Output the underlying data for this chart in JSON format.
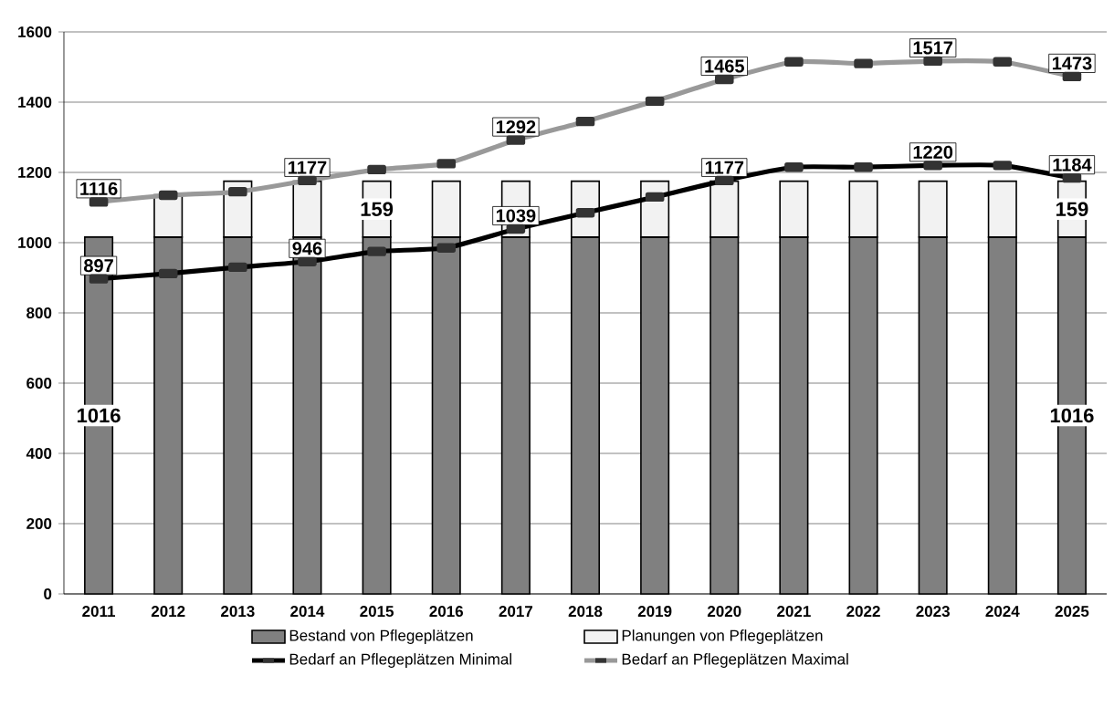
{
  "chart_data": {
    "type": "bar",
    "stacked": true,
    "categories": [
      "2011",
      "2012",
      "2013",
      "2014",
      "2015",
      "2016",
      "2017",
      "2018",
      "2019",
      "2020",
      "2021",
      "2022",
      "2023",
      "2024",
      "2025"
    ],
    "ylim": [
      0,
      1600
    ],
    "yticks": [
      0,
      200,
      400,
      600,
      800,
      1000,
      1200,
      1400,
      1600
    ],
    "grid": "y",
    "legend": "bottom",
    "series": [
      {
        "name": "Bestand von Pflegeplätzen",
        "color": "#808080",
        "values": [
          1016,
          1016,
          1016,
          1016,
          1016,
          1016,
          1016,
          1016,
          1016,
          1016,
          1016,
          1016,
          1016,
          1016,
          1016
        ],
        "value_labels": [
          "1016",
          null,
          null,
          null,
          null,
          null,
          null,
          null,
          null,
          null,
          null,
          null,
          null,
          null,
          "1016"
        ]
      },
      {
        "name": "Planungen von Pflegeplätzen",
        "color": "#f2f2f2",
        "values": [
          null,
          120,
          159,
          159,
          159,
          159,
          159,
          159,
          159,
          159,
          159,
          159,
          159,
          159,
          159
        ],
        "value_labels": [
          null,
          null,
          null,
          null,
          "159",
          null,
          null,
          null,
          null,
          null,
          null,
          null,
          null,
          null,
          "159"
        ]
      },
      {
        "name": "Bedarf an Pflegeplätzen Minimal",
        "type": "line",
        "color": "#000000",
        "marker": "square",
        "values": [
          897,
          912,
          930,
          946,
          975,
          985,
          1039,
          1085,
          1130,
          1177,
          1215,
          1215,
          1220,
          1220,
          1184
        ],
        "value_labels": [
          "897",
          null,
          null,
          "946",
          null,
          null,
          "1039",
          null,
          null,
          "1177",
          null,
          null,
          "1220",
          null,
          "1184"
        ]
      },
      {
        "name": "Bedarf an Pflegeplätzen Maximal",
        "type": "line",
        "color": "#999999",
        "marker": "square",
        "values": [
          1116,
          1135,
          1145,
          1177,
          1208,
          1225,
          1292,
          1345,
          1403,
          1465,
          1515,
          1510,
          1517,
          1515,
          1473
        ],
        "value_labels": [
          "1116",
          null,
          null,
          "1177",
          null,
          null,
          "1292",
          null,
          null,
          "1465",
          null,
          null,
          "1517",
          null,
          "1473"
        ]
      }
    ]
  }
}
